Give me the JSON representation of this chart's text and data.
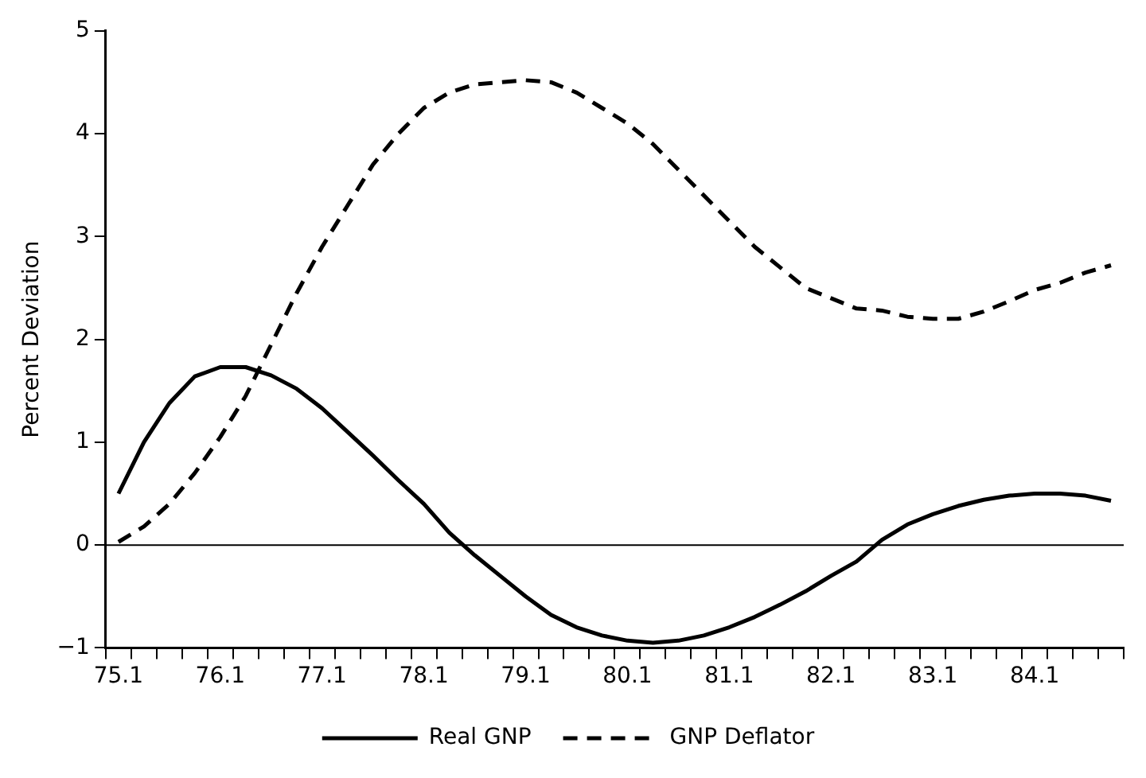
{
  "chart_data": {
    "type": "line",
    "ylabel": "Percent Deviation",
    "categories": [
      "75.1",
      null,
      null,
      null,
      "76.1",
      null,
      null,
      null,
      "77.1",
      null,
      null,
      null,
      "78.1",
      null,
      null,
      null,
      "79.1",
      null,
      null,
      null,
      "80.1",
      null,
      null,
      null,
      "81.1",
      null,
      null,
      null,
      "82.1",
      null,
      null,
      null,
      "83.1",
      null,
      null,
      null,
      "84.1",
      null,
      null,
      null
    ],
    "series": [
      {
        "name": "Real GNP",
        "color": "#000000",
        "line_style": "solid",
        "values": [
          0.5,
          1.0,
          1.38,
          1.64,
          1.73,
          1.73,
          1.65,
          1.52,
          1.33,
          1.1,
          0.87,
          0.63,
          0.4,
          0.12,
          -0.1,
          -0.3,
          -0.5,
          -0.68,
          -0.8,
          -0.88,
          -0.93,
          -0.95,
          -0.93,
          -0.88,
          -0.8,
          -0.7,
          -0.58,
          -0.45,
          -0.3,
          -0.16,
          0.05,
          0.2,
          0.3,
          0.38,
          0.44,
          0.48,
          0.5,
          0.5,
          0.48,
          0.43
        ]
      },
      {
        "name": "GNP Deflator",
        "color": "#000000",
        "line_style": "dashed",
        "values": [
          0.03,
          0.18,
          0.4,
          0.7,
          1.05,
          1.45,
          1.95,
          2.45,
          2.9,
          3.3,
          3.7,
          4.0,
          4.25,
          4.4,
          4.48,
          4.5,
          4.52,
          4.5,
          4.4,
          4.25,
          4.1,
          3.9,
          3.65,
          3.4,
          3.15,
          2.9,
          2.7,
          2.5,
          2.4,
          2.3,
          2.28,
          2.22,
          2.2,
          2.2,
          2.27,
          2.37,
          2.48,
          2.55,
          2.65,
          2.72
        ]
      }
    ],
    "ylim": [
      -1,
      5
    ],
    "yticks": [
      {
        "value": -1,
        "label": "−1"
      },
      0,
      1,
      2,
      3,
      4,
      5
    ],
    "ref_lines": [
      {
        "axis": "y",
        "value": 0,
        "color": "#000000"
      }
    ],
    "grid": false,
    "legend": "bottom",
    "marker": "none"
  }
}
